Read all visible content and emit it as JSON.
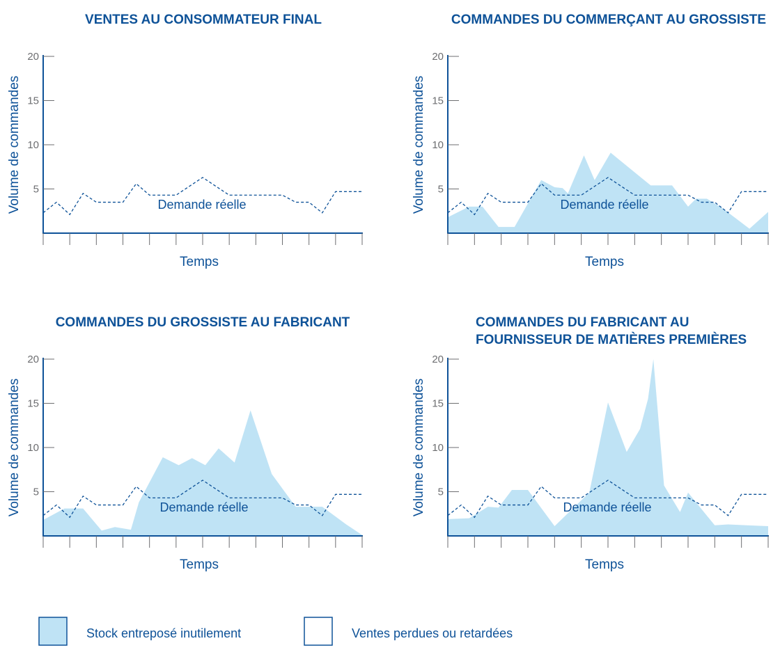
{
  "colors": {
    "title": "#0e5298",
    "axis": "#0e5298",
    "tick": "#6d6e71",
    "fill": "#bfe3f5",
    "demand_line": "#0e5298"
  },
  "chart_data": [
    {
      "type": "area",
      "title": "VENTES AU CONSOMMATEUR FINAL",
      "xlabel": "Temps",
      "ylabel": "Volume de commandes",
      "ylim": [
        0,
        20
      ],
      "yticks": [
        5,
        10,
        15,
        20
      ],
      "x_ticks": 12,
      "demand_label": "Demande réelle",
      "demand": {
        "x": [
          0,
          0.5,
          1,
          1.5,
          2,
          2.8,
          3,
          3.5,
          4,
          4.5,
          5,
          6,
          6.5,
          7,
          7.5,
          8,
          9,
          9.5,
          10,
          10.5,
          11,
          12
        ],
        "y": [
          2.3,
          3.5,
          2.1,
          4.5,
          3.5,
          3.5,
          3.5,
          5.6,
          4.3,
          4.3,
          4.3,
          6.3,
          5.3,
          4.3,
          4.3,
          4.3,
          4.3,
          3.5,
          3.5,
          2.3,
          4.7,
          4.7
        ]
      },
      "orders": null
    },
    {
      "type": "area",
      "title": "COMMANDES DU COMMERÇANT AU GROSSISTE",
      "xlabel": "Temps",
      "ylabel": "Volume de commandes",
      "ylim": [
        0,
        20
      ],
      "yticks": [
        5,
        10,
        15,
        20
      ],
      "x_ticks": 12,
      "demand_label": "Demande réelle",
      "demand": {
        "x": [
          0,
          0.5,
          1,
          1.5,
          2,
          2.8,
          3,
          3.5,
          4,
          4.5,
          5,
          6,
          6.5,
          7,
          7.5,
          8,
          9,
          9.5,
          10,
          10.5,
          11,
          12
        ],
        "y": [
          2.3,
          3.5,
          2.1,
          4.5,
          3.5,
          3.5,
          3.5,
          5.6,
          4.3,
          4.3,
          4.3,
          6.3,
          5.3,
          4.3,
          4.3,
          4.3,
          4.3,
          3.5,
          3.5,
          2.3,
          4.7,
          4.7
        ]
      },
      "orders": {
        "x": [
          0,
          0.8,
          1.3,
          1.9,
          2.5,
          3.5,
          4,
          4.3,
          4.5,
          5.1,
          5.5,
          6.1,
          7.6,
          8.4,
          9,
          9.3,
          9.7,
          10.3,
          11.3,
          12
        ],
        "y": [
          1.8,
          3,
          3,
          0.7,
          0.7,
          6,
          5.2,
          5.1,
          4.5,
          8.8,
          6,
          9.1,
          5.4,
          5.4,
          3,
          3.9,
          3.9,
          2.8,
          0.5,
          2.4
        ]
      }
    },
    {
      "type": "area",
      "title": "COMMANDES DU GROSSISTE AU FABRICANT",
      "xlabel": "Temps",
      "ylabel": "Volume de commandes",
      "ylim": [
        0,
        20
      ],
      "yticks": [
        5,
        10,
        15,
        20
      ],
      "x_ticks": 12,
      "demand_label": "Demande réelle",
      "demand": {
        "x": [
          0,
          0.5,
          1,
          1.5,
          2,
          2.8,
          3,
          3.5,
          4,
          4.5,
          5,
          6,
          6.5,
          7,
          7.5,
          8,
          9,
          9.5,
          10,
          10.5,
          11,
          12
        ],
        "y": [
          2.3,
          3.5,
          2.1,
          4.5,
          3.5,
          3.5,
          3.5,
          5.6,
          4.3,
          4.3,
          4.3,
          6.3,
          5.3,
          4.3,
          4.3,
          4.3,
          4.3,
          3.5,
          3.5,
          2.3,
          4.7,
          4.7
        ]
      },
      "orders": {
        "x": [
          0,
          0.8,
          1.5,
          2.2,
          2.7,
          3.3,
          3.6,
          4.5,
          5.1,
          5.6,
          6.1,
          6.6,
          7.2,
          7.8,
          8.6,
          9.5,
          10.5,
          11.4,
          12
        ],
        "y": [
          1.8,
          3.1,
          3.1,
          0.6,
          1,
          0.7,
          3.8,
          8.9,
          8,
          8.8,
          8,
          9.9,
          8.3,
          14.2,
          7,
          3.3,
          3.3,
          1.3,
          0.1
        ]
      }
    },
    {
      "type": "area",
      "title": "COMMANDES DU FABRICANT AU FOURNISSEUR DE MATIÈRES PREMIÈRES",
      "title_lines": [
        "COMMANDES DU FABRICANT AU",
        "FOURNISSEUR DE MATIÈRES PREMIÈRES"
      ],
      "xlabel": "Temps",
      "ylabel": "Volume de commandes",
      "ylim": [
        0,
        20
      ],
      "yticks": [
        5,
        10,
        15,
        20
      ],
      "x_ticks": 12,
      "demand_label": "Demande réelle",
      "demand": {
        "x": [
          0,
          0.5,
          1,
          1.5,
          2,
          2.8,
          3,
          3.5,
          4,
          4.5,
          5,
          6,
          6.5,
          7,
          7.5,
          8,
          9,
          9.5,
          10,
          10.5,
          11,
          12
        ],
        "y": [
          2.3,
          3.5,
          2.1,
          4.5,
          3.5,
          3.5,
          3.5,
          5.6,
          4.3,
          4.3,
          4.3,
          6.3,
          5.3,
          4.3,
          4.3,
          4.3,
          4.3,
          3.5,
          3.5,
          2.3,
          4.7,
          4.7
        ]
      },
      "orders": {
        "x": [
          0,
          0.8,
          1.5,
          1.9,
          2.4,
          3,
          4,
          5.3,
          6,
          6.7,
          7.2,
          7.5,
          7.7,
          8.1,
          8.7,
          9,
          10,
          10.5,
          11.2,
          12
        ],
        "y": [
          1.9,
          2,
          3.3,
          3.2,
          5.2,
          5.2,
          1.1,
          4.9,
          15.1,
          9.5,
          12.1,
          15.5,
          20,
          5.7,
          2.7,
          4.9,
          1.2,
          1.3,
          1.2,
          1.1
        ]
      }
    }
  ],
  "legend": {
    "items": [
      {
        "label": "Stock entreposé inutilement",
        "swatch": "filled"
      },
      {
        "label": "Ventes perdues ou retardées",
        "swatch": "empty"
      }
    ]
  }
}
